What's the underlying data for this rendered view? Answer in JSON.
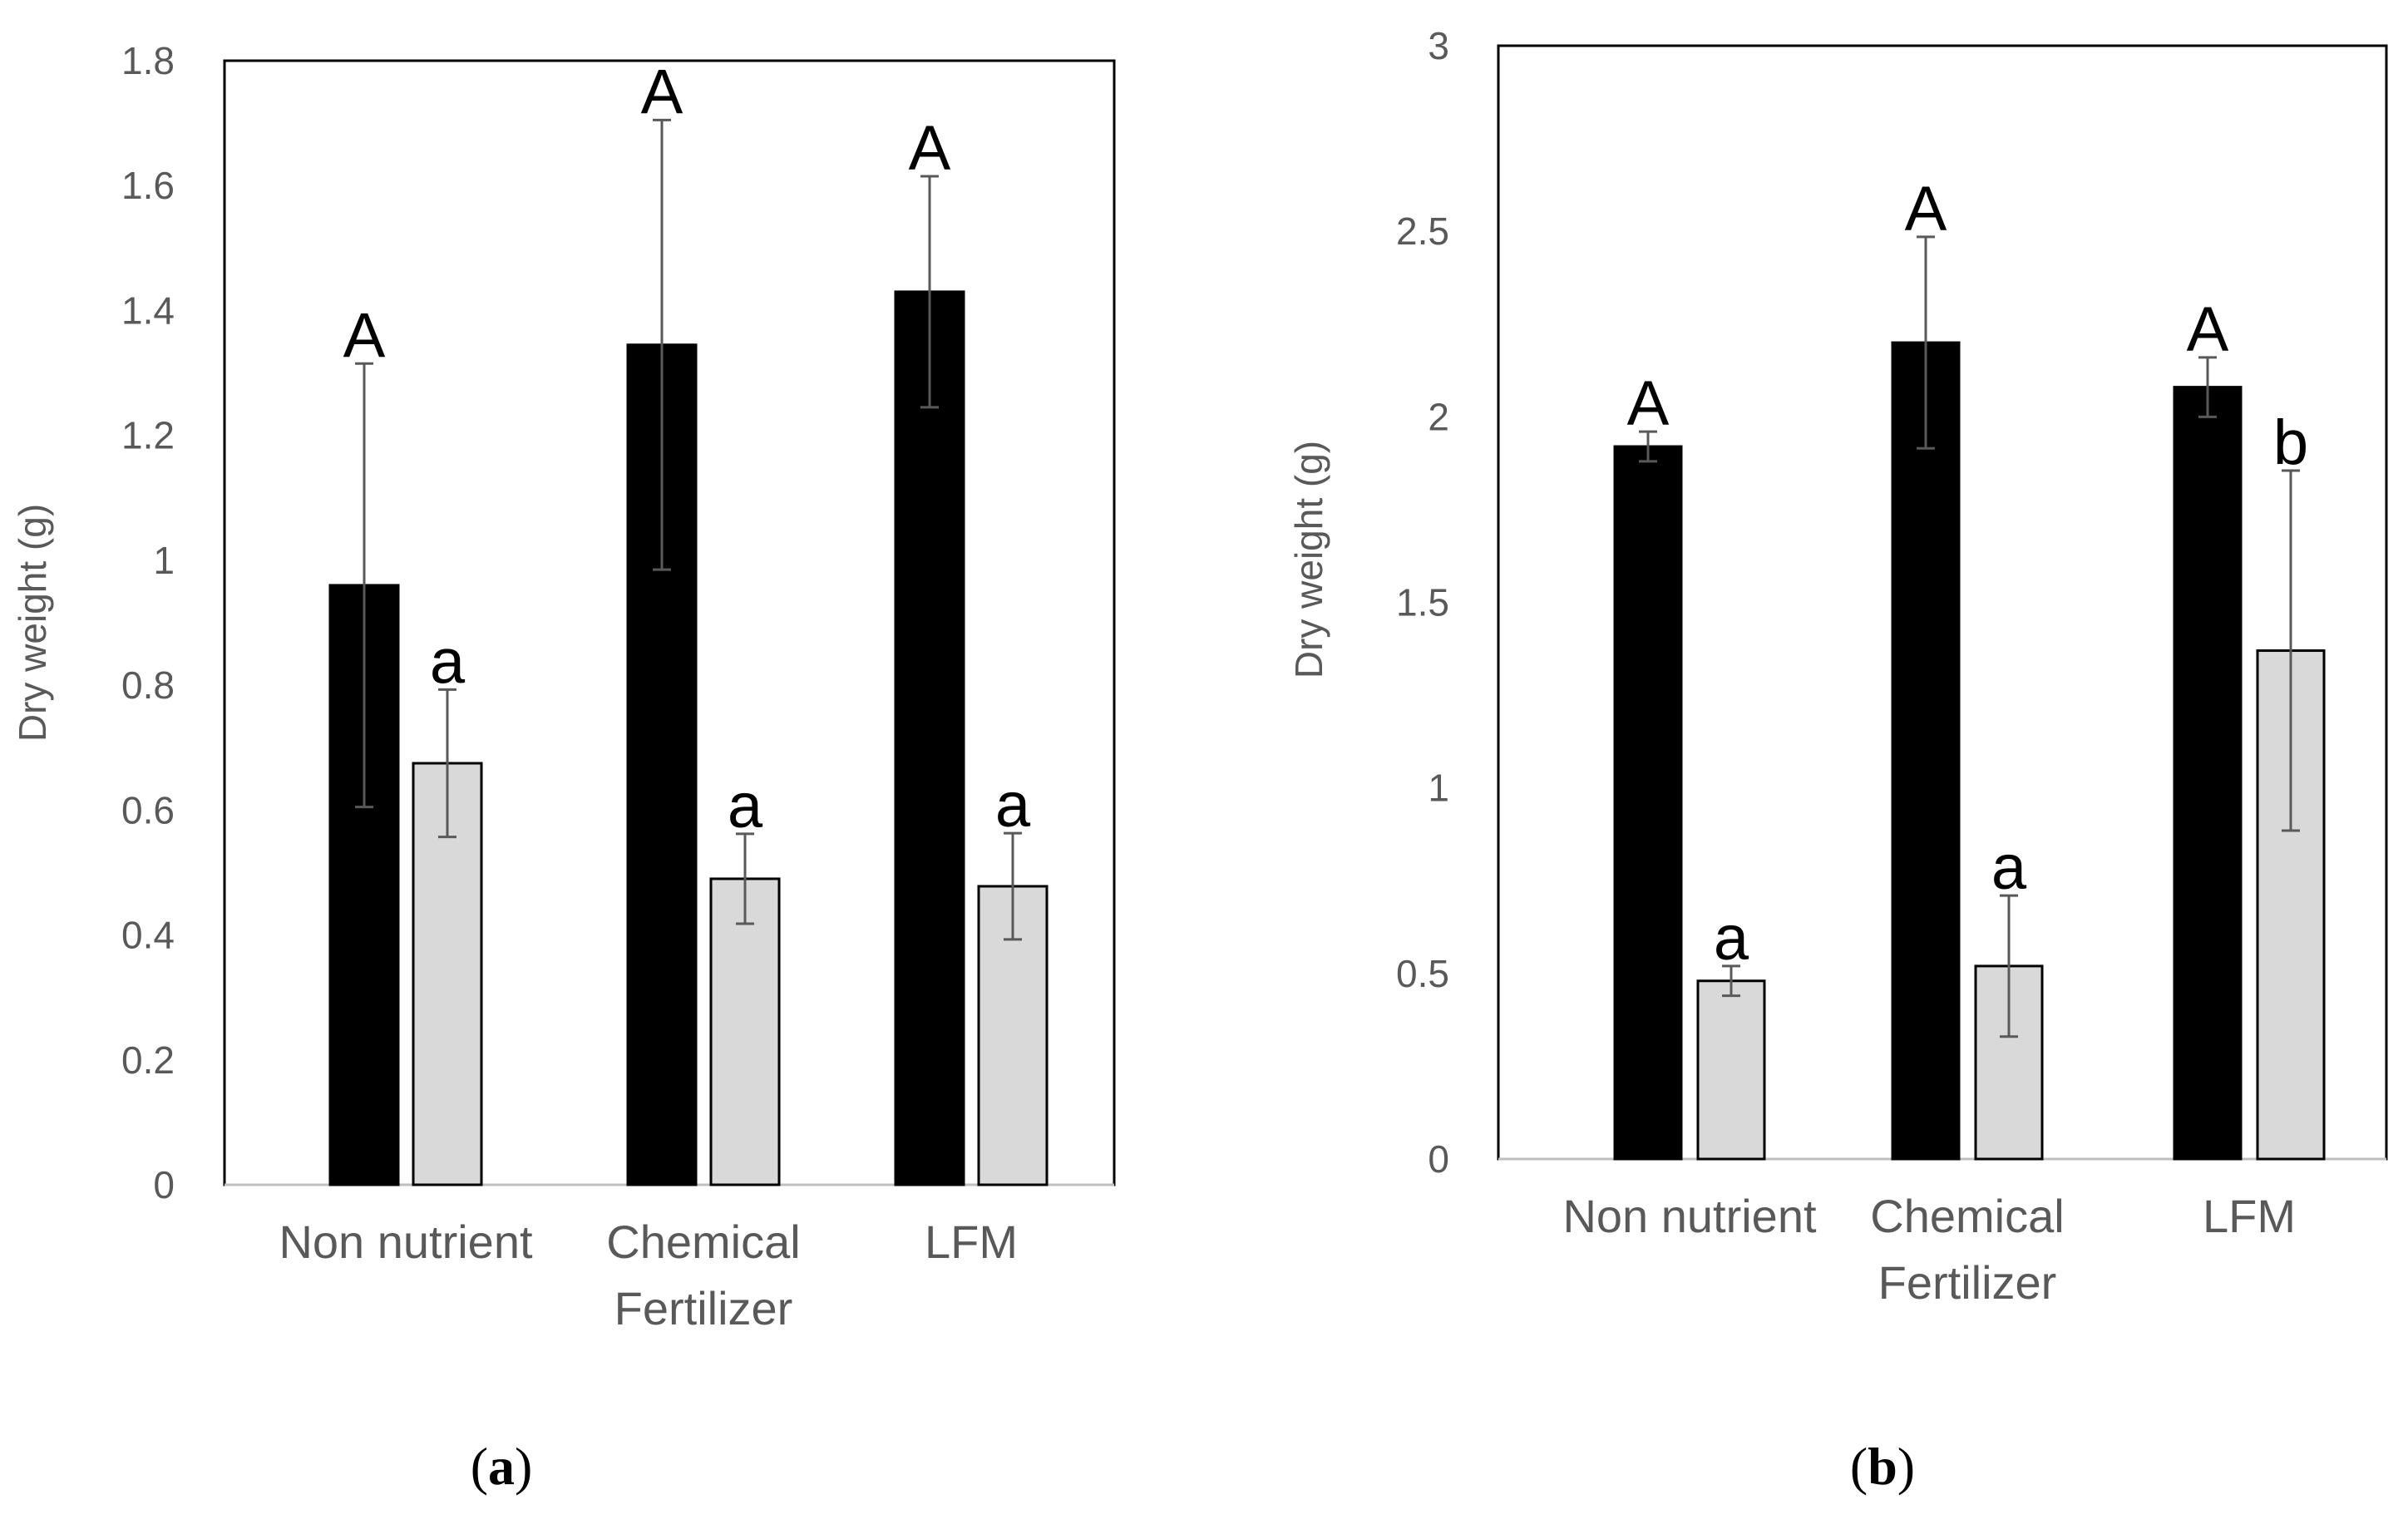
{
  "colors": {
    "series_dark": "#000000",
    "series_light": "#d9d9d9",
    "axis_text": "#595959",
    "error_bar": "#595959"
  },
  "chart_data": [
    {
      "type": "bar",
      "panel_label": "a",
      "title": "",
      "xlabel": "",
      "ylabel": "Dry weight (g)",
      "ylim": [
        0,
        1.8
      ],
      "ytick_step": 0.2,
      "ytick_labels": [
        "0",
        "0.2",
        "0.4",
        "0.6",
        "0.8",
        "1",
        "1.2",
        "1.4",
        "1.6",
        "1.8"
      ],
      "grid": false,
      "legend": "none",
      "categories": [
        [
          "Non nutrient"
        ],
        [
          "Chemical",
          "Fertilizer"
        ],
        [
          "LFM"
        ]
      ],
      "series": [
        {
          "name": "dark",
          "color": "#000000",
          "values": [
            0.96,
            1.345,
            1.43
          ],
          "errors": [
            0.355,
            0.36,
            0.185
          ],
          "letters": [
            "A",
            "A",
            "A"
          ]
        },
        {
          "name": "light",
          "color": "#d9d9d9",
          "values": [
            0.675,
            0.49,
            0.478
          ],
          "errors": [
            0.118,
            0.072,
            0.085
          ],
          "letters": [
            "a",
            "a",
            "a"
          ]
        }
      ]
    },
    {
      "type": "bar",
      "panel_label": "b",
      "title": "",
      "xlabel": "",
      "ylabel": "Dry weight (g)",
      "ylim": [
        0,
        3
      ],
      "ytick_step": 0.5,
      "ytick_labels": [
        "0",
        "0.5",
        "1",
        "1.5",
        "2",
        "2.5",
        "3"
      ],
      "grid": false,
      "legend": "none",
      "categories": [
        [
          "Non nutrient"
        ],
        [
          "Chemical",
          "Fertilizer"
        ],
        [
          "LFM"
        ]
      ],
      "series": [
        {
          "name": "dark",
          "color": "#000000",
          "values": [
            1.92,
            2.2,
            2.08
          ],
          "errors": [
            0.04,
            0.285,
            0.08
          ],
          "letters": [
            "A",
            "A",
            "A"
          ]
        },
        {
          "name": "light",
          "color": "#d9d9d9",
          "values": [
            0.48,
            0.52,
            1.37
          ],
          "errors": [
            0.04,
            0.19,
            0.485
          ],
          "letters": [
            "a",
            "a",
            "b"
          ]
        }
      ]
    }
  ]
}
